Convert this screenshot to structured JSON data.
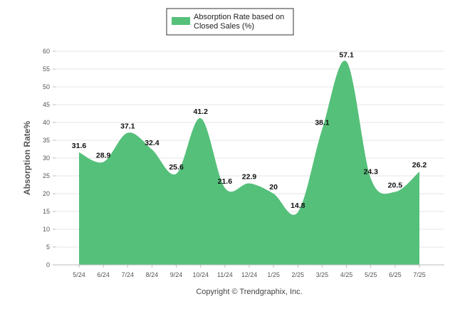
{
  "chart_data": {
    "type": "area",
    "categories": [
      "5/24",
      "6/24",
      "7/24",
      "8/24",
      "9/24",
      "10/24",
      "11/24",
      "12/24",
      "1/25",
      "2/25",
      "3/25",
      "4/25",
      "5/25",
      "6/25",
      "7/25"
    ],
    "series": [
      {
        "name": "Absorption Rate based on Closed Sales (%)",
        "name_lines": [
          "Absorption Rate based on",
          "Closed Sales (%)"
        ],
        "values": [
          31.6,
          28.9,
          37.1,
          32.4,
          25.6,
          41.2,
          21.6,
          22.9,
          20,
          14.8,
          38.1,
          57.1,
          24.3,
          20.5,
          26.2
        ],
        "color": "#55c07a"
      }
    ],
    "ylabel": "Absorption Rate%",
    "xlabel": "",
    "ylim": [
      0,
      60
    ],
    "yticks": [
      0,
      5,
      10,
      15,
      20,
      25,
      30,
      35,
      40,
      45,
      50,
      55,
      60
    ],
    "grid": true,
    "legend": "top-center"
  },
  "footer": {
    "copyright": "Copyright © Trendgraphix, Inc."
  }
}
